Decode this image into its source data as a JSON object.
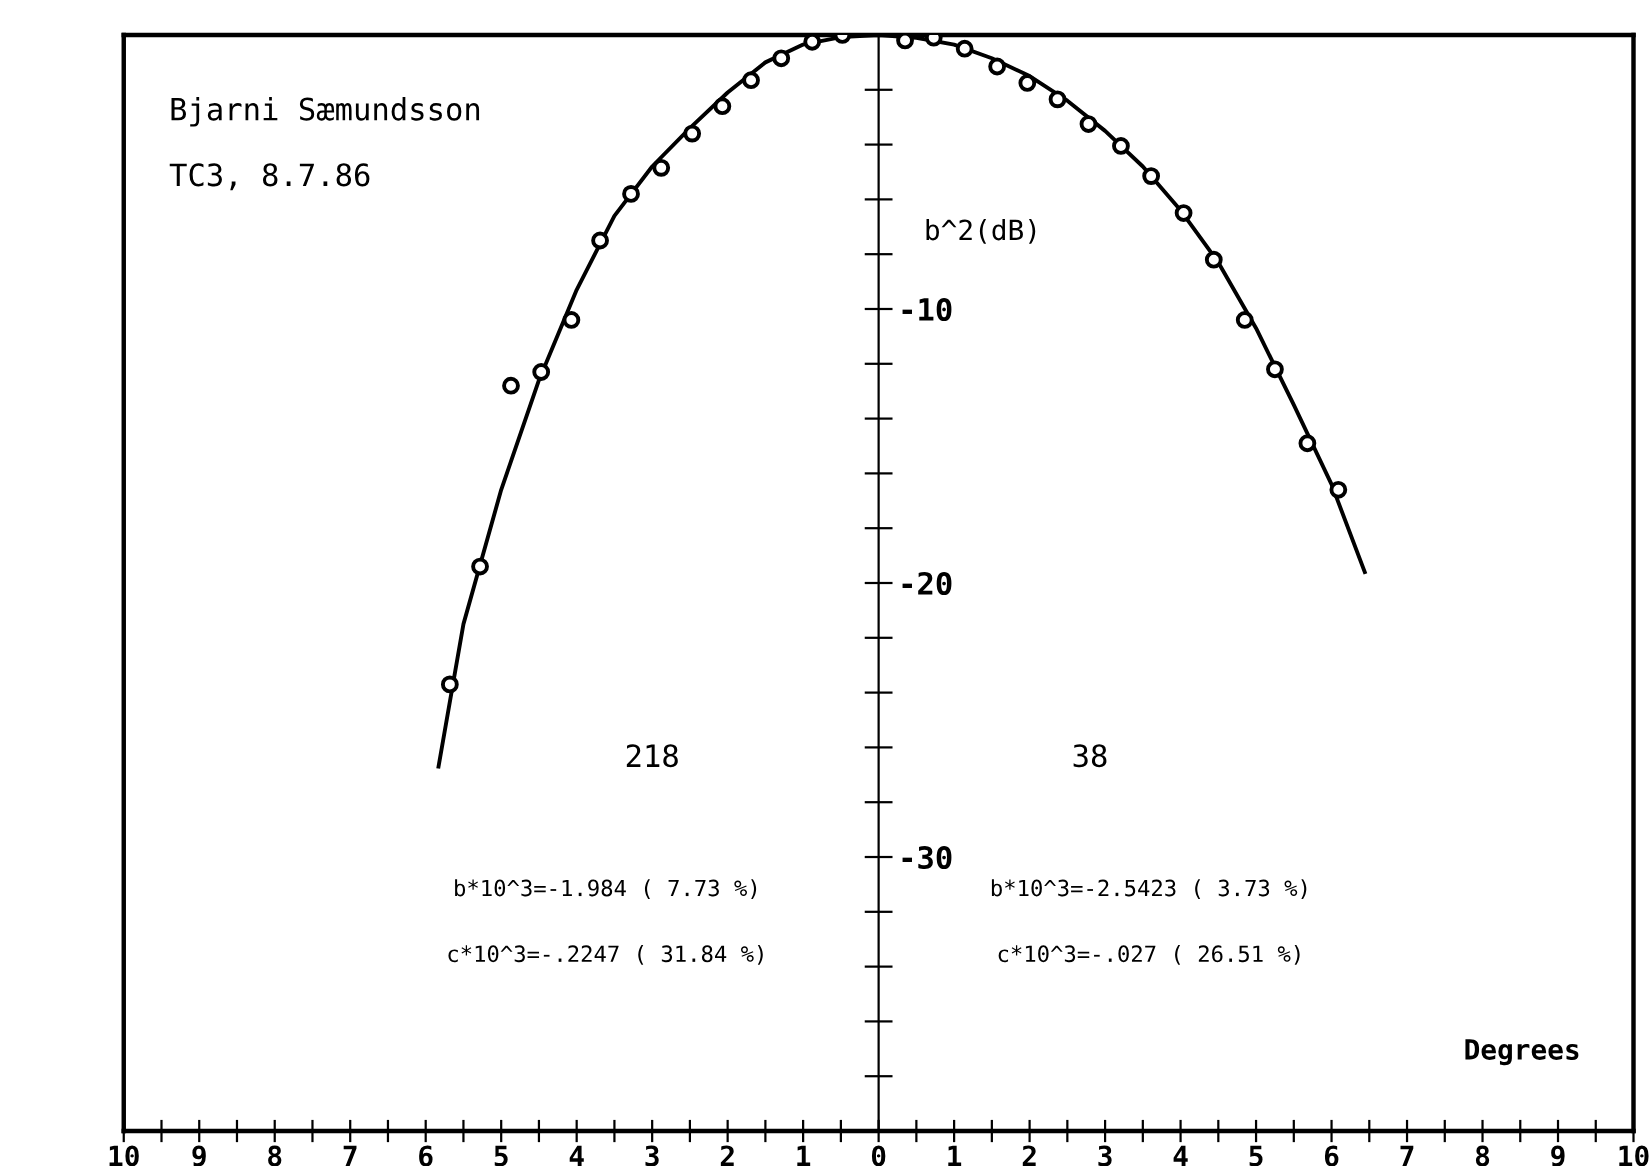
{
  "chart_data": {
    "type": "scatter",
    "xlabel": "Degrees",
    "ylabel": "b^2(dB)",
    "xlim": [
      -10,
      10
    ],
    "ylim": [
      -40,
      0
    ],
    "xticks": [
      {
        "value": -10,
        "label": "10"
      },
      {
        "value": -9.5,
        "label": null
      },
      {
        "value": -9,
        "label": "9"
      },
      {
        "value": -8.5,
        "label": null
      },
      {
        "value": -8,
        "label": "8"
      },
      {
        "value": -7.5,
        "label": null
      },
      {
        "value": -7,
        "label": "7"
      },
      {
        "value": -6.5,
        "label": null
      },
      {
        "value": -6,
        "label": "6"
      },
      {
        "value": -5.5,
        "label": null
      },
      {
        "value": -5,
        "label": "5"
      },
      {
        "value": -4.5,
        "label": null
      },
      {
        "value": -4,
        "label": "4"
      },
      {
        "value": -3.5,
        "label": null
      },
      {
        "value": -3,
        "label": "3"
      },
      {
        "value": -2.5,
        "label": null
      },
      {
        "value": -2,
        "label": "2"
      },
      {
        "value": -1.5,
        "label": null
      },
      {
        "value": -1,
        "label": "1"
      },
      {
        "value": -0.5,
        "label": null
      },
      0,
      {
        "value": 0.5,
        "label": null
      },
      1,
      {
        "value": 1.5,
        "label": null
      },
      2,
      {
        "value": 2.5,
        "label": null
      },
      3,
      {
        "value": 3.5,
        "label": null
      },
      4,
      {
        "value": 4.5,
        "label": null
      },
      5,
      {
        "value": 5.5,
        "label": null
      },
      6,
      {
        "value": 6.5,
        "label": null
      },
      7,
      {
        "value": 7.5,
        "label": null
      },
      8,
      {
        "value": 8.5,
        "label": null
      },
      9,
      {
        "value": 9.5,
        "label": null
      },
      10
    ],
    "yticks": [
      {
        "value": -38,
        "label": null
      },
      {
        "value": -36,
        "label": null
      },
      {
        "value": -34,
        "label": null
      },
      {
        "value": -32,
        "label": null
      },
      -30,
      {
        "value": -28,
        "label": null
      },
      {
        "value": -26,
        "label": null
      },
      {
        "value": -24,
        "label": null
      },
      {
        "value": -22,
        "label": null
      },
      -20,
      {
        "value": -18,
        "label": null
      },
      {
        "value": -16,
        "label": null
      },
      {
        "value": -14,
        "label": null
      },
      {
        "value": -12,
        "label": null
      },
      -10,
      {
        "value": -8,
        "label": null
      },
      {
        "value": -6,
        "label": null
      },
      {
        "value": -4,
        "label": null
      },
      {
        "value": -2,
        "label": null
      }
    ],
    "grid": false,
    "legend": false,
    "annotations": [
      "Bjarni Sæmundsson",
      "TC3, 8.7.86",
      "218",
      "38",
      "b*10^3=-1.984 ( 7.73 %)",
      "c*10^3=-.2247 ( 31.84 %)",
      "b*10^3=-2.5423 ( 3.73 %)",
      "c*10^3=-.027 ( 26.51 %)"
    ],
    "series": [
      {
        "marker": "circle",
        "color": "#000000",
        "x": [
          -0.48,
          -0.88,
          -1.29,
          -1.69,
          -2.07,
          -2.47,
          -2.88,
          -3.28,
          -3.69,
          -4.07,
          -4.47,
          -4.87,
          -5.28,
          -5.68
        ],
        "values": [
          0,
          -0.25,
          -0.85,
          -1.65,
          -2.6,
          -3.6,
          -4.85,
          -5.8,
          -7.5,
          -10.4,
          -12.3,
          -12.8,
          -19.4,
          -23.7
        ]
      },
      {
        "marker": "circle",
        "color": "#000000",
        "x": [
          0.35,
          0.73,
          1.14,
          1.57,
          1.97,
          2.37,
          2.78,
          3.21,
          3.61,
          4.04,
          4.44,
          4.85,
          5.25,
          5.68,
          6.09
        ],
        "values": [
          -0.2,
          -0.1,
          -0.5,
          -1.15,
          -1.75,
          -2.35,
          -3.25,
          -4.05,
          -5.15,
          -6.5,
          -8.2,
          -10.4,
          -12.2,
          -14.9,
          -16.6
        ]
      },
      {
        "type": "line",
        "marker": "none",
        "color": "#000000",
        "x": [
          -5.83,
          -5.5,
          -5,
          -4.5,
          -4,
          -3.5,
          -3,
          -2.5,
          -2,
          -1.5,
          -1,
          -0.5,
          0,
          0.5,
          1,
          1.5,
          2,
          2.5,
          3,
          3.5,
          4,
          4.5,
          5,
          5.5,
          6,
          6.44
        ],
        "values": [
          -26.7,
          -21.5,
          -16.6,
          -12.6,
          -9.3,
          -6.6,
          -4.8,
          -3.4,
          -2.1,
          -1.0,
          -0.35,
          -0.08,
          0,
          -0.1,
          -0.35,
          -0.85,
          -1.5,
          -2.4,
          -3.5,
          -4.8,
          -6.4,
          -8.3,
          -10.7,
          -13.5,
          -16.4,
          -19.6
        ]
      }
    ]
  }
}
